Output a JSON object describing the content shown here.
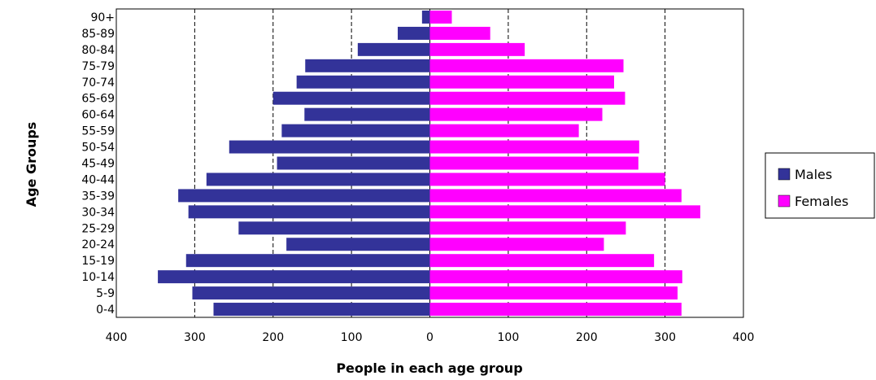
{
  "chart_data": {
    "type": "bar",
    "orientation": "horizontal",
    "layout": "population-pyramid",
    "title": "",
    "xlabel": "People in each age group",
    "ylabel": "Age Groups",
    "xlim": [
      -400,
      400
    ],
    "x_ticks": [
      -400,
      -300,
      -200,
      -100,
      0,
      100,
      200,
      300,
      400
    ],
    "x_tick_labels": [
      "400",
      "300",
      "200",
      "100",
      "0",
      "100",
      "200",
      "300",
      "400"
    ],
    "grid": "vertical dashed",
    "legend_position": "right",
    "categories": [
      "0-4",
      "5-9",
      "10-14",
      "15-19",
      "20-24",
      "25-29",
      "30-34",
      "35-39",
      "40-44",
      "45-49",
      "50-54",
      "55-59",
      "60-64",
      "65-69",
      "70-74",
      "75-79",
      "80-84",
      "85-89",
      "90+"
    ],
    "series": [
      {
        "name": "Males",
        "color": "#333399",
        "values": [
          276,
          303,
          347,
          311,
          183,
          244,
          308,
          321,
          285,
          195,
          256,
          189,
          160,
          200,
          170,
          159,
          92,
          41,
          10
        ]
      },
      {
        "name": "Females",
        "color": "#ff00ff",
        "values": [
          321,
          316,
          322,
          286,
          222,
          250,
          345,
          321,
          300,
          266,
          267,
          190,
          220,
          249,
          235,
          247,
          121,
          77,
          28
        ]
      }
    ]
  }
}
